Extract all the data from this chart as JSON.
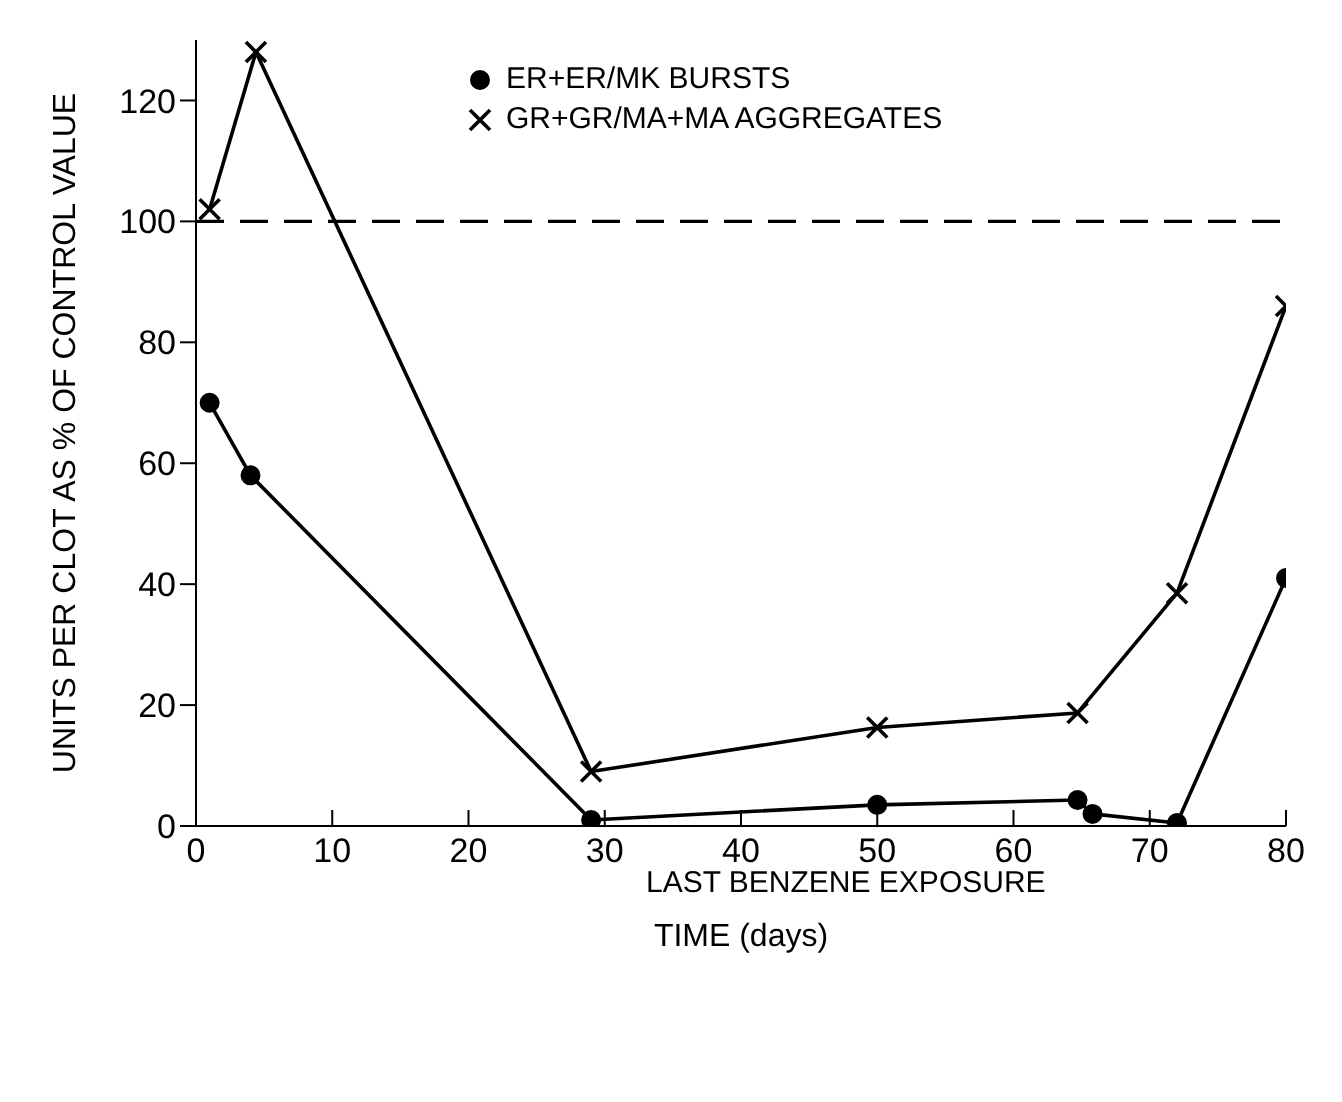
{
  "chart_data": {
    "type": "line",
    "xlabel": "TIME (days)",
    "ylabel": "UNITS PER CLOT AS % OF CONTROL VALUE",
    "xlim": [
      0,
      80
    ],
    "xticks": [
      0,
      10,
      20,
      30,
      40,
      50,
      60,
      70,
      80
    ],
    "ylim": [
      0,
      130
    ],
    "yticks": [
      0,
      20,
      40,
      60,
      80,
      100,
      120
    ],
    "series": [
      {
        "name": "ER+ER/MK BURSTS",
        "color": "#000000",
        "marker": "circle",
        "x": [
          1,
          4,
          29,
          50,
          64.7,
          65.8,
          72,
          80
        ],
        "values": [
          70,
          58,
          1,
          3.5,
          4.3,
          2,
          0.5,
          41
        ]
      },
      {
        "name": "GR+GR/MA+MA AGGREGATES",
        "color": "#000000",
        "marker": "cross",
        "x": [
          1,
          4.4,
          29,
          50,
          64.7,
          72,
          80
        ],
        "values": [
          102,
          128,
          9,
          16.3,
          18.7,
          38.5,
          86
        ]
      }
    ],
    "ref_lines": [
      {
        "axis": "y",
        "value": 100,
        "line_style": "dashed",
        "color": "#000000"
      }
    ],
    "annotations": [
      "LAST BENZENE EXPOSURE"
    ],
    "legend": "top",
    "grid": false,
    "line_style": "solid"
  }
}
